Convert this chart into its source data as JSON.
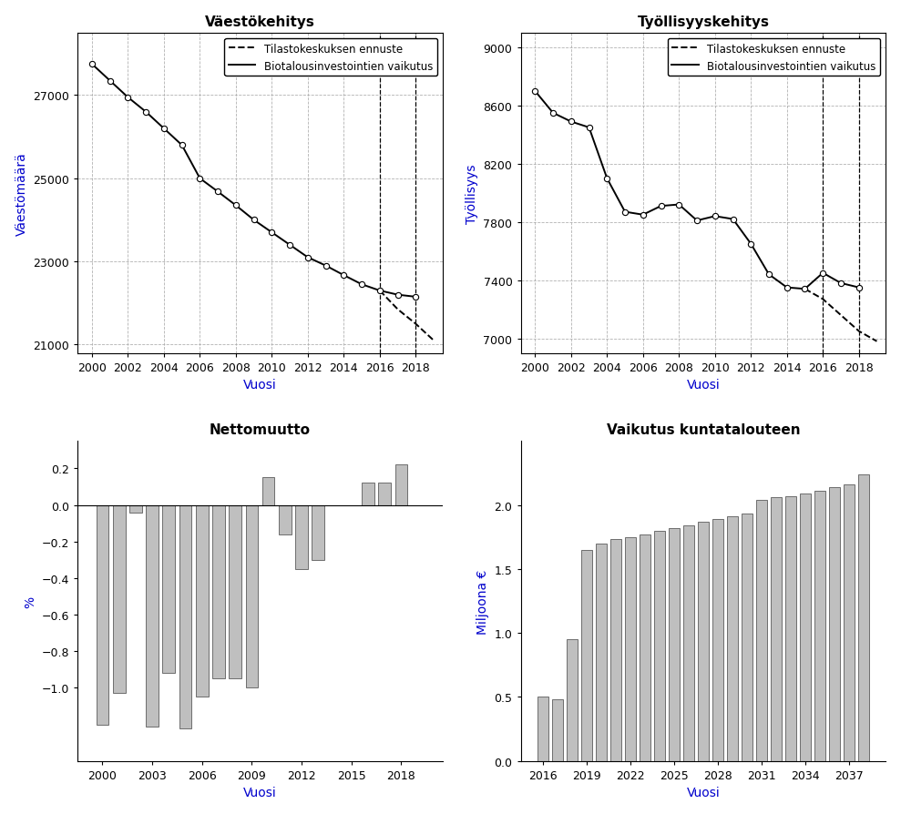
{
  "vaesto_years": [
    2000,
    2001,
    2002,
    2003,
    2004,
    2005,
    2006,
    2007,
    2008,
    2009,
    2010,
    2011,
    2012,
    2013,
    2014,
    2015,
    2016,
    2017,
    2018
  ],
  "vaesto_bio": [
    27750,
    27350,
    26950,
    26600,
    26200,
    25800,
    25000,
    24680,
    24350,
    24000,
    23700,
    23400,
    23100,
    22900,
    22670,
    22450,
    22300,
    22200,
    22150
  ],
  "vaesto_ennuste_years": [
    2016,
    2017,
    2018,
    2019
  ],
  "vaesto_ennuste": [
    22300,
    21850,
    21500,
    21100
  ],
  "vaesto_vline1": 2016,
  "vaesto_vline2": 2018,
  "vaesto_ylim": [
    20800,
    28500
  ],
  "vaesto_yticks": [
    21000,
    23000,
    25000,
    27000
  ],
  "vaesto_ylabel": "Väestömäärä",
  "vaesto_title": "Väestökehitys",
  "tyoll_years": [
    2000,
    2001,
    2002,
    2003,
    2004,
    2005,
    2006,
    2007,
    2008,
    2009,
    2010,
    2011,
    2012,
    2013,
    2014,
    2015,
    2016,
    2017,
    2018
  ],
  "tyoll_bio": [
    8700,
    8550,
    8490,
    8450,
    8100,
    7870,
    7850,
    7910,
    7920,
    7810,
    7840,
    7820,
    7650,
    7440,
    7350,
    7340,
    7450,
    7380,
    7350
  ],
  "tyoll_ennuste_years": [
    2015,
    2016,
    2017,
    2018,
    2019
  ],
  "tyoll_ennuste": [
    7340,
    7270,
    7160,
    7050,
    6980
  ],
  "tyoll_vline1": 2016,
  "tyoll_vline2": 2018,
  "tyoll_ylim": [
    6900,
    9100
  ],
  "tyoll_yticks": [
    7000,
    7400,
    7800,
    8200,
    8600,
    9000
  ],
  "tyoll_ylabel": "Työllisyys",
  "tyoll_title": "Työllisyyskehitys",
  "netto_years": [
    2000,
    2001,
    2002,
    2003,
    2004,
    2005,
    2006,
    2007,
    2008,
    2009,
    2010,
    2011,
    2012,
    2013,
    2016,
    2017,
    2018
  ],
  "netto_values": [
    -1.2,
    -1.03,
    -0.04,
    -1.21,
    -0.92,
    -1.22,
    -1.05,
    -0.95,
    -0.95,
    -1.0,
    0.15,
    -0.16,
    -0.35,
    -0.3,
    0.12,
    0.12,
    0.22
  ],
  "netto_ylabel": "%",
  "netto_title": "Nettomuutto",
  "netto_ylim": [
    -1.4,
    0.35
  ],
  "netto_yticks": [
    -1.0,
    -0.8,
    -0.6,
    -0.4,
    -0.2,
    0.0,
    0.2
  ],
  "netto_xticks": [
    2000,
    2003,
    2006,
    2009,
    2012,
    2015,
    2018
  ],
  "kunta_years": [
    2016,
    2017,
    2018,
    2019,
    2020,
    2021,
    2022,
    2023,
    2024,
    2025,
    2026,
    2027,
    2028,
    2029,
    2030,
    2031,
    2032,
    2033,
    2034,
    2035,
    2036,
    2037,
    2038
  ],
  "kunta_values": [
    0.5,
    0.48,
    0.95,
    1.65,
    1.7,
    1.73,
    1.75,
    1.77,
    1.8,
    1.82,
    1.84,
    1.87,
    1.89,
    1.91,
    1.93,
    2.04,
    2.06,
    2.07,
    2.09,
    2.11,
    2.14,
    2.16,
    2.24
  ],
  "kunta_ylabel": "Miljoona €",
  "kunta_title": "Vaikutus kuntatalouteen",
  "kunta_ylim": [
    0,
    2.5
  ],
  "kunta_yticks": [
    0.0,
    0.5,
    1.0,
    1.5,
    2.0
  ],
  "kunta_xticks": [
    2016,
    2019,
    2022,
    2025,
    2028,
    2031,
    2034,
    2037
  ],
  "legend_dashed": "Tilastokeskuksen ennuste",
  "legend_solid": "Biotalousinvestointien vaikutus",
  "xlabel": "Vuosi",
  "bar_color": "#bfbfbf",
  "bar_edge_color": "#404040",
  "line_color": "black",
  "bg_color": "white",
  "grid_color": "#aaaaaa",
  "axis_label_color": "#0000cc",
  "title_color": "black"
}
